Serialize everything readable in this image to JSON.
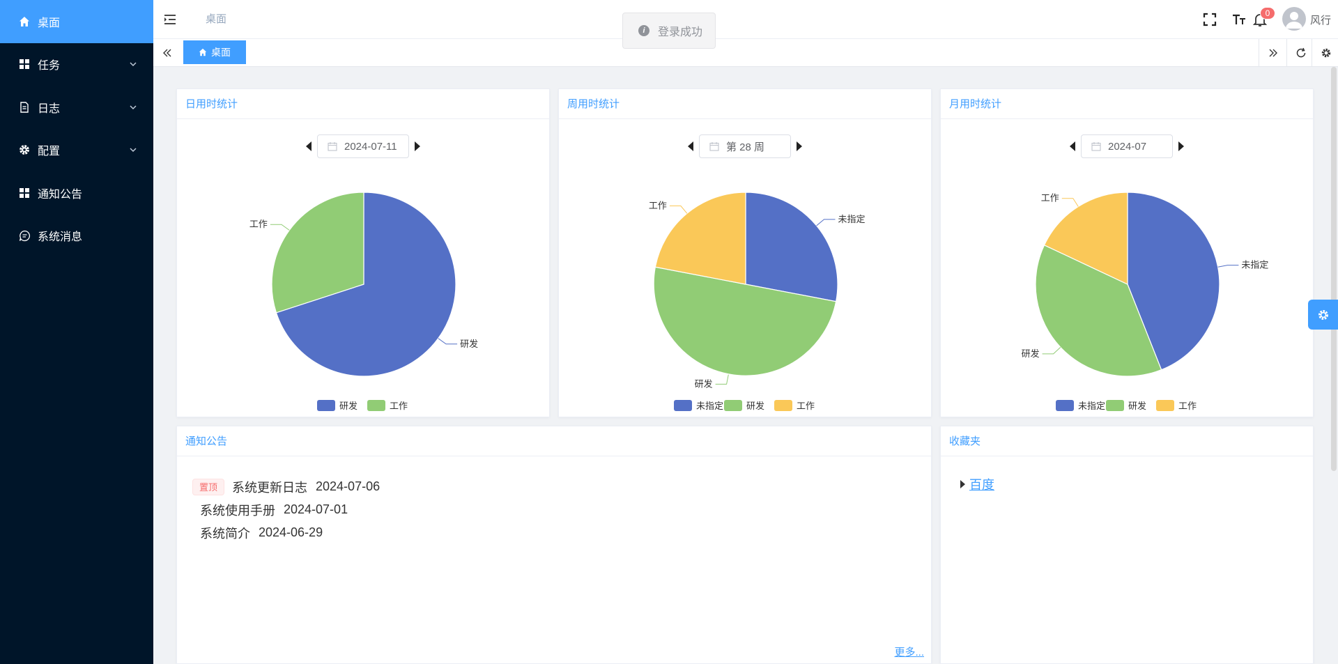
{
  "sidebar": {
    "items": [
      {
        "label": "桌面",
        "icon": "home-icon",
        "active": true,
        "expandable": false
      },
      {
        "label": "任务",
        "icon": "grid-icon",
        "active": false,
        "expandable": true
      },
      {
        "label": "日志",
        "icon": "document-icon",
        "active": false,
        "expandable": true
      },
      {
        "label": "配置",
        "icon": "gear-icon",
        "active": false,
        "expandable": true
      },
      {
        "label": "通知公告",
        "icon": "grid-icon",
        "active": false,
        "expandable": false
      },
      {
        "label": "系统消息",
        "icon": "chat-icon",
        "active": false,
        "expandable": false
      }
    ]
  },
  "header": {
    "breadcrumb": "桌面",
    "toast": "登录成功",
    "notification_count": "0",
    "username": "风行"
  },
  "tags": {
    "active_label": "桌面"
  },
  "colors": {
    "primary": "#409eff",
    "sidebar_bg": "#001529",
    "series_blue": "#5470c6",
    "series_green": "#91cc75",
    "series_yellow": "#fac858"
  },
  "panels": {
    "daily": {
      "title": "日用时统计",
      "date": "2024-07-11"
    },
    "weekly": {
      "title": "周用时统计",
      "date": "第 28 周"
    },
    "monthly": {
      "title": "月用时统计",
      "date": "2024-07"
    }
  },
  "chart_data": [
    {
      "type": "pie",
      "title": "日用时统计",
      "categories": [
        "研发",
        "工作"
      ],
      "values": [
        70,
        30
      ],
      "colors": [
        "#5470c6",
        "#91cc75"
      ],
      "legend": [
        "研发",
        "工作"
      ],
      "legend_position": "bottom"
    },
    {
      "type": "pie",
      "title": "周用时统计",
      "categories": [
        "未指定",
        "研发",
        "工作"
      ],
      "values": [
        28,
        50,
        22
      ],
      "colors": [
        "#5470c6",
        "#91cc75",
        "#fac858"
      ],
      "legend": [
        "未指定",
        "研发",
        "工作"
      ],
      "legend_position": "bottom"
    },
    {
      "type": "pie",
      "title": "月用时统计",
      "categories": [
        "未指定",
        "研发",
        "工作"
      ],
      "values": [
        44,
        38,
        18
      ],
      "colors": [
        "#5470c6",
        "#91cc75",
        "#fac858"
      ],
      "legend": [
        "未指定",
        "研发",
        "工作"
      ],
      "legend_position": "bottom"
    }
  ],
  "notices": {
    "title": "通知公告",
    "pin_label": "置顶",
    "items": [
      {
        "title": "系统更新日志",
        "date": "2024-07-06",
        "pinned": true
      },
      {
        "title": "系统使用手册",
        "date": "2024-07-01",
        "pinned": false
      },
      {
        "title": "系统简介",
        "date": "2024-06-29",
        "pinned": false
      }
    ],
    "more": "更多..."
  },
  "favorites": {
    "title": "收藏夹",
    "items": [
      {
        "label": "百度"
      }
    ]
  }
}
